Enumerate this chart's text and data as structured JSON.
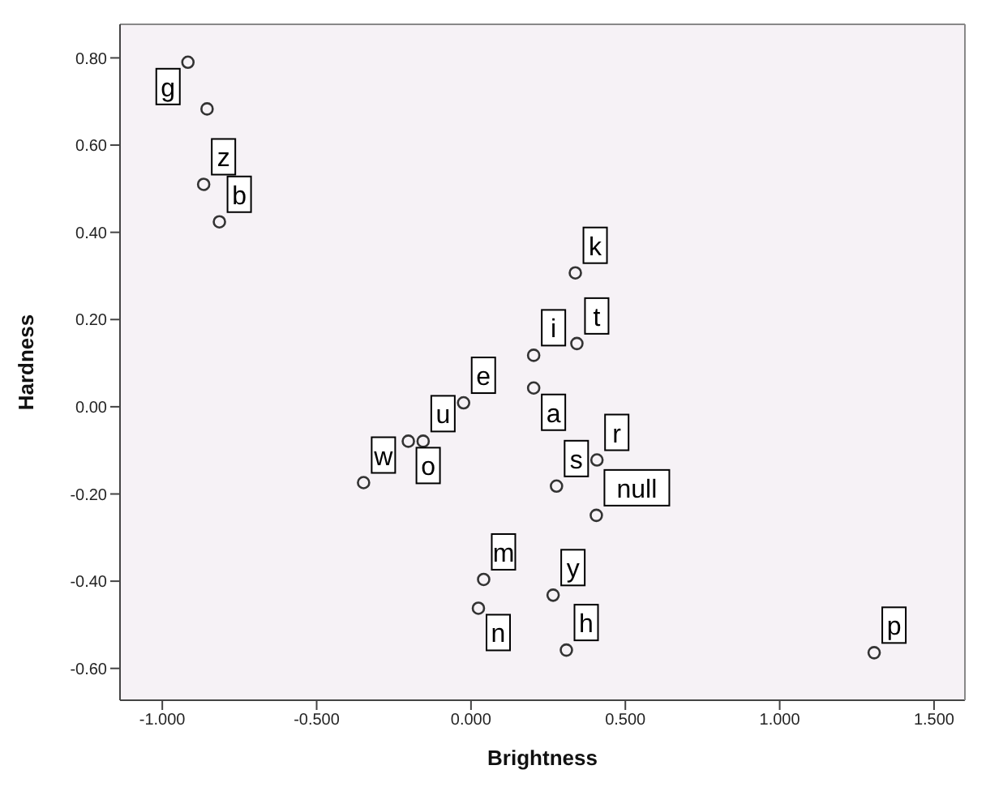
{
  "chart_data": {
    "type": "scatter",
    "xlabel": "Brightness",
    "ylabel": "Hardness",
    "x": [
      -0.917,
      -0.855,
      -0.866,
      -0.815,
      0.338,
      0.343,
      0.203,
      0.203,
      -0.024,
      -0.155,
      -0.203,
      -0.348,
      0.408,
      0.277,
      0.406,
      0.041,
      0.024,
      0.266,
      0.309,
      1.306
    ],
    "values": [
      0.79,
      0.683,
      0.51,
      0.424,
      0.307,
      0.145,
      0.118,
      0.043,
      0.009,
      -0.079,
      -0.079,
      -0.174,
      -0.122,
      -0.182,
      -0.249,
      -0.396,
      -0.462,
      -0.432,
      -0.558,
      -0.564
    ],
    "value_labels": [
      "g",
      null,
      "z",
      "b",
      "k",
      "t",
      "i",
      "a",
      "e",
      "u",
      "o",
      "w",
      "r",
      "s",
      "null",
      "m",
      "n",
      "y",
      "h",
      "p"
    ],
    "color": "#333333",
    "marker": "circle",
    "xlim": [
      -1.137,
      1.6
    ],
    "ylim": [
      -0.673,
      0.877
    ],
    "xticks": [
      {
        "value": -1,
        "label": "-1.000"
      },
      {
        "value": -0.5,
        "label": "-0.500"
      },
      {
        "value": 0,
        "label": "0.000"
      },
      {
        "value": 0.5,
        "label": "0.500"
      },
      {
        "value": 1,
        "label": "1.000"
      },
      {
        "value": 1.5,
        "label": "1.500"
      }
    ],
    "yticks": [
      {
        "value": -0.6,
        "label": "-0.60"
      },
      {
        "value": -0.4,
        "label": "-0.40"
      },
      {
        "value": -0.2,
        "label": "-0.20"
      },
      {
        "value": 0,
        "label": "0.00"
      },
      {
        "value": 0.2,
        "label": "0.20"
      },
      {
        "value": 0.4,
        "label": "0.40"
      },
      {
        "value": 0.6,
        "label": "0.60"
      },
      {
        "value": 0.8,
        "label": "0.80"
      }
    ]
  }
}
